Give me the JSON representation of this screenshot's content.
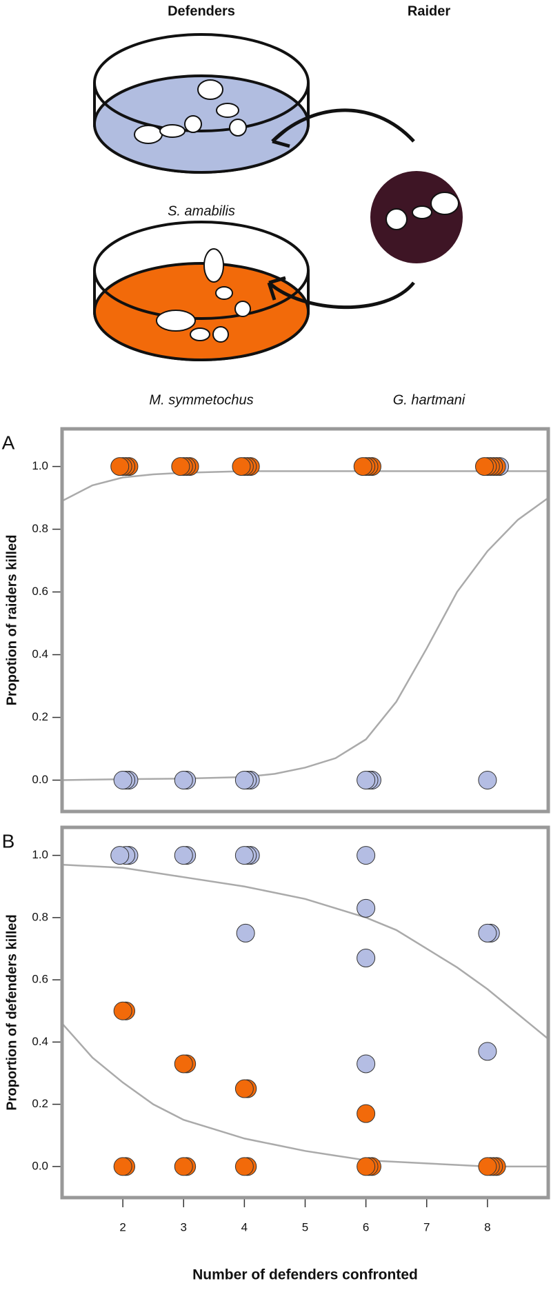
{
  "illustration": {
    "defenders": "Defenders",
    "raider": "Raider",
    "species_1": "S. amabilis",
    "species_2": "M. symmetochus",
    "species_3": "G. hartmani"
  },
  "chart_data": [
    {
      "type": "scatter",
      "label": "A",
      "ylabel": "Propotion of raiders killed",
      "xlim": [
        1,
        9
      ],
      "ylim": [
        -0.1,
        1.12
      ],
      "yticks": [
        {
          "value": 0,
          "label": "0.0"
        },
        {
          "value": 0.2,
          "label": "0.2"
        },
        {
          "value": 0.4,
          "label": "0.4"
        },
        {
          "value": 0.6,
          "label": "0.6"
        },
        {
          "value": 0.8,
          "label": "0.8"
        },
        {
          "value": 1,
          "label": "1.0"
        }
      ],
      "series": [
        {
          "color": "#aaaaaa",
          "line": true,
          "x": [
            1,
            1.5,
            2,
            2.5,
            3,
            4,
            5,
            6,
            7,
            8,
            9
          ],
          "values": [
            0.89,
            0.94,
            0.965,
            0.975,
            0.98,
            0.985,
            0.985,
            0.985,
            0.985,
            0.985,
            0.985
          ]
        },
        {
          "color": "#aaaaaa",
          "line": true,
          "x": [
            1,
            2,
            3,
            4,
            4.5,
            5,
            5.5,
            6,
            6.5,
            7,
            7.5,
            8,
            8.5,
            9
          ],
          "values": [
            0,
            0.003,
            0.005,
            0.01,
            0.02,
            0.04,
            0.07,
            0.13,
            0.25,
            0.42,
            0.6,
            0.73,
            0.83,
            0.9
          ]
        },
        {
          "color": "#b4bde3",
          "x": [
            8.2,
            2.1,
            2.05,
            2,
            3.05,
            3,
            4.1,
            4.05,
            4,
            6.1,
            6.05,
            6,
            8
          ],
          "values": [
            1,
            0,
            0,
            0,
            0,
            0,
            0,
            0,
            0,
            0,
            0,
            0,
            0
          ]
        },
        {
          "color": "#f26a0a",
          "x": [
            2.1,
            2.05,
            2,
            1.95,
            3.1,
            3.05,
            3,
            2.95,
            4.1,
            4.05,
            4,
            3.95,
            6.1,
            6.05,
            6,
            5.95,
            8.15,
            8.1,
            8.05,
            8,
            7.95
          ],
          "values": [
            1,
            1,
            1,
            1,
            1,
            1,
            1,
            1,
            1,
            1,
            1,
            1,
            1,
            1,
            1,
            1,
            1,
            1,
            1,
            1,
            1
          ]
        }
      ]
    },
    {
      "type": "scatter",
      "label": "B",
      "ylabel": "Proportion of defenders killed",
      "xlabel": "Number of defenders confronted",
      "xlim": [
        1,
        9
      ],
      "ylim": [
        -0.1,
        1.09
      ],
      "xticks": [
        2,
        3,
        4,
        5,
        6,
        7,
        8
      ],
      "yticks": [
        {
          "value": 0,
          "label": "0.0"
        },
        {
          "value": 0.2,
          "label": "0.2"
        },
        {
          "value": 0.4,
          "label": "0.4"
        },
        {
          "value": 0.6,
          "label": "0.6"
        },
        {
          "value": 0.8,
          "label": "0.8"
        },
        {
          "value": 1,
          "label": "1.0"
        }
      ],
      "series": [
        {
          "color": "#aaaaaa",
          "line": true,
          "x": [
            1,
            1.5,
            2,
            2.5,
            3,
            3.5,
            4,
            4.5,
            5,
            5.5,
            6,
            6.5,
            7,
            7.5,
            8,
            8.5,
            9
          ],
          "values": [
            0.46,
            0.35,
            0.27,
            0.2,
            0.15,
            0.12,
            0.09,
            0.07,
            0.05,
            0.035,
            0.02,
            0.015,
            0.01,
            0.005,
            0,
            0,
            0
          ]
        },
        {
          "color": "#aaaaaa",
          "line": true,
          "x": [
            1,
            2,
            3,
            4,
            5,
            6,
            6.5,
            7,
            7.5,
            8,
            8.5,
            9
          ],
          "values": [
            0.97,
            0.96,
            0.93,
            0.9,
            0.86,
            0.8,
            0.76,
            0.7,
            0.64,
            0.57,
            0.49,
            0.41
          ]
        },
        {
          "color": "#b4bde3",
          "x": [
            2.1,
            2.05,
            1.95,
            3.05,
            3,
            4.1,
            4.05,
            4,
            6,
            4.02,
            6,
            6,
            6,
            8.05,
            8,
            8
          ],
          "values": [
            1,
            1,
            1,
            1,
            1,
            1,
            1,
            1,
            1,
            0.75,
            0.83,
            0.67,
            0.33,
            0.75,
            0.75,
            0.37
          ]
        },
        {
          "color": "#f26a0a",
          "x": [
            2.05,
            2,
            3.05,
            3,
            4.05,
            4,
            6,
            2.05,
            2,
            3.05,
            3,
            4.05,
            4,
            6.1,
            6.05,
            6,
            8.15,
            8.1,
            8.05,
            8
          ],
          "values": [
            0.5,
            0.5,
            0.33,
            0.33,
            0.25,
            0.25,
            0.17,
            0,
            0,
            0,
            0,
            0,
            0,
            0,
            0,
            0,
            0,
            0,
            0,
            0
          ]
        }
      ]
    }
  ]
}
